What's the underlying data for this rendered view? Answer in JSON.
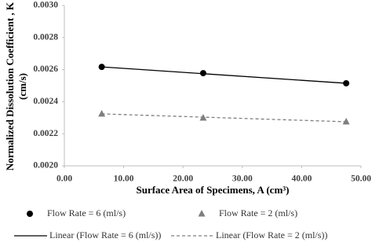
{
  "chart_data": {
    "type": "scatter",
    "xlabel": "Surface Area of Specimens, A (cm³)",
    "ylabel": [
      "Normalized Dissolution  Coefficient , K",
      "(cm/s)"
    ],
    "xlim": [
      0,
      50
    ],
    "ylim": [
      0.002,
      0.003
    ],
    "xticks": [
      {
        "value": 0,
        "label": "0.00"
      },
      {
        "value": 10,
        "label": "10.00"
      },
      {
        "value": 20,
        "label": "20.00"
      },
      {
        "value": 30,
        "label": "30.00"
      },
      {
        "value": 40,
        "label": "40.00"
      },
      {
        "value": 50,
        "label": "50.00"
      }
    ],
    "yticks": [
      {
        "value": 0.002,
        "label": "0.0020"
      },
      {
        "value": 0.0022,
        "label": "0.0022"
      },
      {
        "value": 0.0024,
        "label": "0.0024"
      },
      {
        "value": 0.0026,
        "label": "0.0026"
      },
      {
        "value": 0.0028,
        "label": "0.0028"
      },
      {
        "value": 0.003,
        "label": "0.0030"
      }
    ],
    "grid": false,
    "legend": "bottom",
    "series": [
      {
        "name": "Flow Rate = 6 (ml/s)",
        "color": "#000000",
        "marker": "circle",
        "x": [
          6.3,
          23.4,
          47.5
        ],
        "values": [
          0.002617,
          0.002578,
          0.002515
        ]
      },
      {
        "name": "Flow Rate = 2 (ml/s)",
        "color": "#7f7f7f",
        "marker": "triangle",
        "x": [
          6.3,
          23.4,
          47.5
        ],
        "values": [
          0.002324,
          0.002299,
          0.002275
        ]
      },
      {
        "name": "Linear (Flow Rate = 6 (ml/s))",
        "color": "#000000",
        "line": "solid",
        "x": [
          6.3,
          47.5
        ],
        "values": [
          0.002617,
          0.002515
        ]
      },
      {
        "name": "Linear (Flow Rate = 2 (ml/s))",
        "color": "#7f7f7f",
        "line": "dashed",
        "x": [
          6.3,
          47.5
        ],
        "values": [
          0.002324,
          0.002275
        ]
      }
    ]
  }
}
